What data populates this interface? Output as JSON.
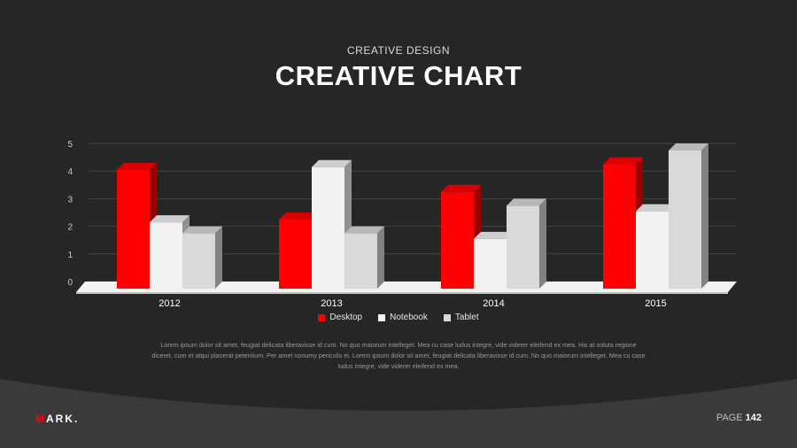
{
  "header": {
    "subtitle": "CREATIVE DESIGN",
    "title": "CREATIVE CHART"
  },
  "chart_data": {
    "type": "bar",
    "categories": [
      "2012",
      "2013",
      "2014",
      "2015"
    ],
    "series": [
      {
        "name": "Desktop",
        "values": [
          4.3,
          2.5,
          3.5,
          4.5
        ],
        "color": "#ff0000"
      },
      {
        "name": "Notebook",
        "values": [
          2.4,
          4.4,
          1.8,
          2.8
        ],
        "color": "#f2f2f2"
      },
      {
        "name": "Tablet",
        "values": [
          2.0,
          2.0,
          3.0,
          5.0
        ],
        "color": "#d9d9d9"
      }
    ],
    "yticks": [
      "0",
      "1",
      "2",
      "3",
      "4",
      "5"
    ],
    "ylim": [
      0,
      5
    ],
    "grid": true,
    "legend_position": "bottom"
  },
  "legend": {
    "items": [
      {
        "label": "Desktop",
        "color": "#ff0000"
      },
      {
        "label": "Notebook",
        "color": "#f2f2f2"
      },
      {
        "label": "Tablet",
        "color": "#d9d9d9"
      }
    ]
  },
  "body": {
    "text": "Lorem ipsum dolor sit amet, feugiat delicata liberavisse id cum. No quo maiorum intelleget. Mea cu case ludus integre, vide viderer eleifend ex mea. His at soluta regione diceret, cum et atqui placerat petentium. Per amet nonumy periculis ei. Lorem ipsum dolor sit amet, feugiat delicata liberavisse id cum. No quo maiorum intelleget. Mea cu case ludus integre, vide viderer eleifend ex mea."
  },
  "footer": {
    "logo_accent": "M",
    "logo_rest": "ARK.",
    "page_label": "PAGE",
    "page_number": "142"
  },
  "colors": {
    "background": "#262626",
    "footer_background": "#3a3a3a",
    "accent": "#ff0000"
  }
}
